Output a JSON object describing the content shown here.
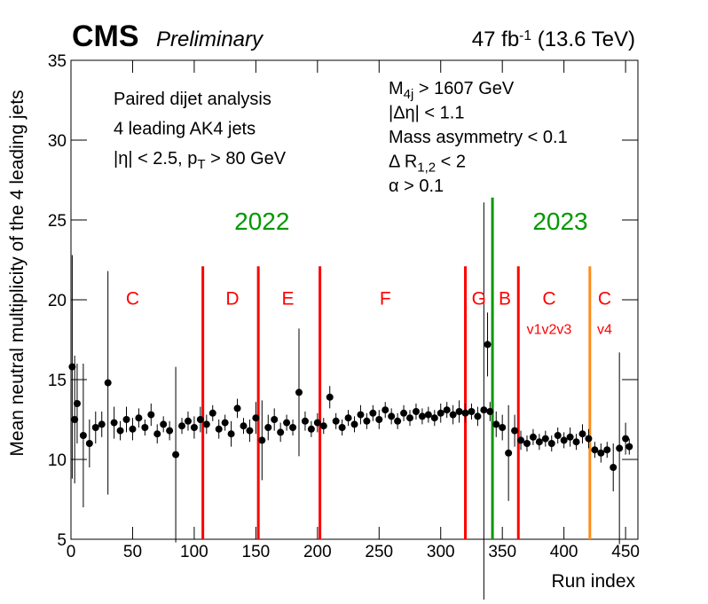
{
  "chart_data": {
    "type": "scatter",
    "experiment": "CMS",
    "status": "Preliminary",
    "lumi": [
      {
        "text": "47 fb"
      },
      {
        "sup": "-1"
      },
      {
        "text": " (13.6 TeV)"
      }
    ],
    "xlabel": "Run index",
    "ylabel": "Mean neutral multiplicity of the 4 leading jets",
    "xlim": [
      0,
      460
    ],
    "ylim": [
      5,
      35
    ],
    "xticks": [
      0,
      50,
      100,
      150,
      200,
      250,
      300,
      350,
      400,
      450
    ],
    "yticks": [
      5,
      10,
      15,
      20,
      25,
      30,
      35
    ],
    "color": "#000000",
    "x": [
      1,
      3,
      5,
      10,
      15,
      20,
      25,
      30,
      35,
      40,
      45,
      50,
      55,
      60,
      65,
      70,
      75,
      80,
      85,
      90,
      95,
      100,
      105,
      110,
      115,
      120,
      125,
      130,
      135,
      140,
      145,
      150,
      155,
      160,
      165,
      170,
      175,
      180,
      185,
      190,
      195,
      200,
      205,
      210,
      215,
      220,
      225,
      230,
      235,
      240,
      245,
      250,
      255,
      260,
      265,
      270,
      275,
      280,
      285,
      290,
      295,
      300,
      305,
      310,
      315,
      320,
      325,
      330,
      335,
      338,
      340,
      345,
      350,
      355,
      360,
      365,
      370,
      375,
      380,
      385,
      390,
      395,
      400,
      405,
      410,
      415,
      420,
      425,
      430,
      435,
      440,
      445,
      450,
      453
    ],
    "values": [
      15.8,
      12.5,
      13.5,
      11.5,
      11.0,
      12.0,
      12.2,
      14.8,
      12.3,
      11.8,
      12.5,
      11.9,
      12.6,
      12.0,
      12.8,
      11.6,
      12.2,
      11.8,
      10.3,
      12.1,
      12.4,
      12.0,
      12.5,
      12.2,
      12.9,
      11.9,
      12.3,
      11.6,
      13.2,
      12.1,
      11.8,
      12.6,
      11.2,
      12.0,
      12.5,
      11.7,
      12.3,
      12.0,
      14.2,
      12.4,
      11.9,
      12.3,
      12.1,
      13.9,
      12.4,
      12.0,
      12.6,
      12.2,
      12.8,
      12.4,
      12.9,
      12.5,
      13.1,
      12.7,
      12.4,
      12.9,
      12.6,
      13.0,
      12.7,
      12.8,
      12.6,
      12.9,
      13.1,
      12.8,
      13.0,
      12.9,
      13.0,
      12.7,
      13.1,
      17.2,
      13.0,
      12.2,
      12.0,
      10.4,
      11.8,
      11.2,
      11.0,
      11.4,
      11.1,
      11.3,
      11.0,
      11.5,
      11.2,
      11.4,
      11.1,
      11.6,
      11.3,
      10.6,
      10.4,
      10.6,
      9.5,
      10.7,
      11.3,
      10.8
    ],
    "errors": [
      7,
      4,
      2.5,
      4.5,
      1.5,
      1,
      0.8,
      7,
      1,
      0.6,
      0.8,
      0.7,
      0.6,
      0.5,
      0.7,
      0.6,
      0.5,
      0.6,
      5.5,
      0.5,
      0.6,
      0.7,
      0.8,
      0.6,
      0.5,
      0.6,
      0.5,
      0.8,
      0.6,
      0.5,
      0.7,
      1,
      2.5,
      0.8,
      0.7,
      0.6,
      0.5,
      0.5,
      4,
      0.6,
      0.5,
      0.6,
      0.5,
      0.7,
      0.5,
      0.5,
      0.5,
      0.5,
      0.6,
      0.5,
      0.5,
      0.6,
      0.5,
      0.5,
      0.5,
      0.5,
      0.5,
      0.5,
      0.5,
      0.5,
      0.5,
      0.6,
      0.5,
      0.6,
      0.7,
      0.6,
      0.5,
      0.6,
      13,
      2,
      0.6,
      0.8,
      0.8,
      3,
      1,
      0.6,
      0.5,
      0.5,
      0.5,
      0.5,
      0.5,
      0.5,
      0.5,
      0.6,
      0.5,
      0.6,
      0.6,
      0.5,
      0.6,
      0.5,
      1.5,
      6,
      1,
      0.5
    ],
    "era_lines": [
      {
        "x": 107,
        "top": 22.1,
        "color": "#ff0000"
      },
      {
        "x": 152,
        "top": 22.1,
        "color": "#ff0000"
      },
      {
        "x": 202,
        "top": 22.1,
        "color": "#ff0000"
      },
      {
        "x": 320,
        "top": 22.1,
        "color": "#ff0000"
      },
      {
        "x": 342,
        "top": 26.4,
        "color": "#009900"
      },
      {
        "x": 363,
        "top": 22.1,
        "color": "#ff0000"
      },
      {
        "x": 421,
        "top": 22.1,
        "color": "#ff8c1a"
      }
    ],
    "era_labels": [
      {
        "text": "C",
        "x": 50,
        "y": 20,
        "color": "#ff0000"
      },
      {
        "text": "D",
        "x": 131,
        "y": 20,
        "color": "#ff0000"
      },
      {
        "text": "E",
        "x": 176,
        "y": 20,
        "color": "#ff0000"
      },
      {
        "text": "F",
        "x": 255,
        "y": 20,
        "color": "#ff0000"
      },
      {
        "text": "G",
        "x": 331,
        "y": 20,
        "color": "#ff0000"
      },
      {
        "text": "B",
        "x": 352,
        "y": 20,
        "color": "#ff0000"
      },
      {
        "text": "C",
        "x": 388,
        "y": 20,
        "color": "#ff0000"
      },
      {
        "text": "C",
        "x": 433,
        "y": 20,
        "color": "#ff0000"
      }
    ],
    "era_sublabels": [
      {
        "text": "v1v2v3",
        "x": 388,
        "y": 18.1,
        "color": "#ff0000"
      },
      {
        "text": "v4",
        "x": 433,
        "y": 18.1,
        "color": "#ff0000"
      }
    ],
    "year_labels": [
      {
        "text": "2022",
        "x": 155,
        "y": 24.8,
        "color": "#009900"
      },
      {
        "text": "2023",
        "x": 397,
        "y": 24.8,
        "color": "#009900"
      }
    ],
    "selection_left": [
      [
        {
          "text": "Paired dijet analysis"
        }
      ],
      [
        {
          "text": "4 leading AK4 jets"
        }
      ],
      [
        {
          "text": "|η| < 2.5, p"
        },
        {
          "sub": "T"
        },
        {
          "text": " > 80 GeV"
        }
      ]
    ],
    "selection_right": [
      [
        {
          "text": "M"
        },
        {
          "sub": "4j"
        },
        {
          "text": " > 1607 GeV"
        }
      ],
      [
        {
          "text": "|Δη| < 1.1"
        }
      ],
      [
        {
          "text": "Mass asymmetry < 0.1"
        }
      ],
      [
        {
          "text": "Δ R"
        },
        {
          "sub": "1,2"
        },
        {
          "text": " < 2"
        }
      ],
      [
        {
          "text": "α > 0.1"
        }
      ]
    ]
  }
}
